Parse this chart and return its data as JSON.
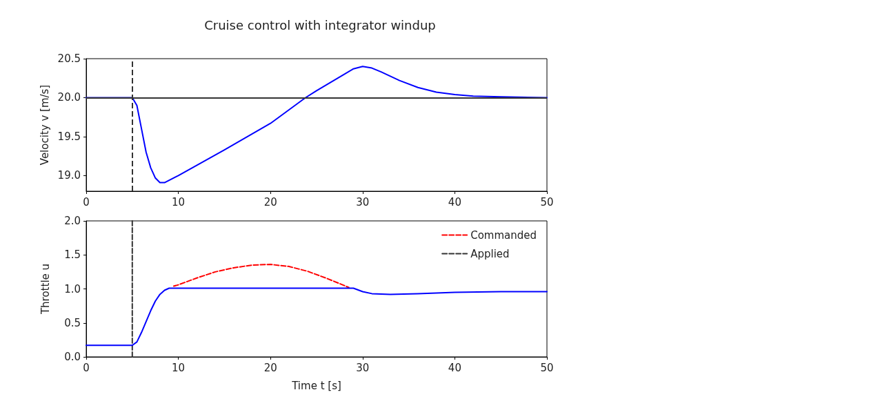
{
  "chart_data": [
    {
      "type": "line",
      "title": "Cruise control with integrator windup",
      "ylabel": "Velocity v [m/s]",
      "xlim": [
        0,
        50
      ],
      "xticks": [
        0,
        10,
        20,
        30,
        40,
        50
      ],
      "ylim": [
        18.8,
        20.5
      ],
      "yticks": [
        {
          "value": 19,
          "label": "19.0"
        },
        {
          "value": 19.5,
          "label": "19.5"
        },
        {
          "value": 20,
          "label": "20.0"
        },
        {
          "value": 20.5,
          "label": "20.5"
        }
      ],
      "grid": false,
      "legend": false,
      "series": [
        {
          "color": "#0000ff",
          "line_style": "solid",
          "x": [
            0,
            5,
            5.5,
            6,
            6.5,
            7,
            7.5,
            8,
            8.5,
            10,
            15,
            20,
            23.8,
            25,
            28,
            29,
            30,
            31,
            32,
            34,
            36,
            38,
            40,
            42,
            45,
            50
          ],
          "values": [
            20,
            20,
            19.9,
            19.6,
            19.3,
            19.1,
            18.97,
            18.91,
            18.91,
            19,
            19.33,
            19.67,
            20,
            20.09,
            20.3,
            20.37,
            20.4,
            20.38,
            20.33,
            20.22,
            20.13,
            20.07,
            20.04,
            20.02,
            20.01,
            20
          ]
        }
      ],
      "ref_lines": [
        {
          "axis": "y",
          "value": 20,
          "color": "#333333",
          "line_style": "solid"
        },
        {
          "axis": "x",
          "value": 5,
          "color": "#333333",
          "line_style": "dashed"
        }
      ]
    },
    {
      "type": "line",
      "xlabel": "Time t [s]",
      "ylabel": "Throttle u",
      "xlim": [
        0,
        50
      ],
      "xticks": [
        0,
        10,
        20,
        30,
        40,
        50
      ],
      "ylim": [
        0,
        2
      ],
      "yticks": [
        {
          "value": 0,
          "label": "0.0"
        },
        {
          "value": 0.5,
          "label": "0.5"
        },
        {
          "value": 1,
          "label": "1.0"
        },
        {
          "value": 1.5,
          "label": "1.5"
        },
        {
          "value": 2,
          "label": "2.0"
        }
      ],
      "grid": false,
      "legend": "top right",
      "series": [
        {
          "name": "Commanded",
          "color": "#ff0000",
          "line_style": "dashed",
          "x": [
            9.5,
            10,
            12,
            14,
            16,
            18,
            20,
            22,
            24,
            26,
            28,
            28.5
          ],
          "values": [
            1.04,
            1.06,
            1.16,
            1.25,
            1.31,
            1.35,
            1.36,
            1.33,
            1.26,
            1.16,
            1.05,
            1.02
          ]
        },
        {
          "name": "Applied",
          "color": "#333333",
          "line_style": "dashed",
          "x": [
            5,
            5
          ],
          "values": [
            0,
            2
          ]
        },
        {
          "color": "#0000ff",
          "line_style": "solid",
          "x": [
            0,
            5,
            5.5,
            6,
            6.5,
            7,
            7.5,
            8,
            8.5,
            9,
            15,
            20,
            25,
            29,
            30,
            31,
            33,
            36,
            40,
            45,
            50
          ],
          "values": [
            0.17,
            0.17,
            0.22,
            0.36,
            0.52,
            0.68,
            0.82,
            0.92,
            0.98,
            1.01,
            1.01,
            1.01,
            1.01,
            1.01,
            0.96,
            0.93,
            0.92,
            0.93,
            0.95,
            0.96,
            0.96
          ]
        }
      ]
    }
  ]
}
